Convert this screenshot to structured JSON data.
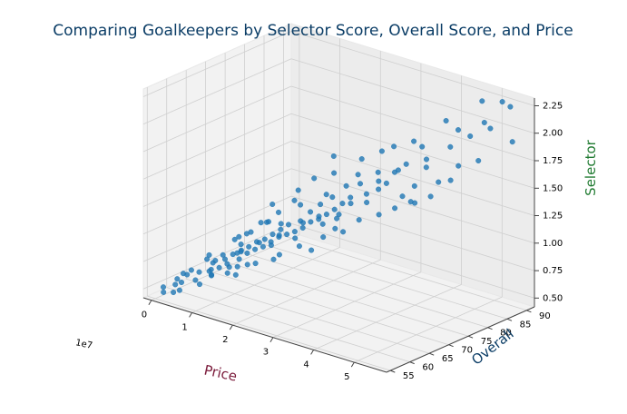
{
  "chart_data": {
    "type": "scatter",
    "projection": "3d",
    "title": "Comparing Goalkeepers by Selector Score, Overall Score, and Price",
    "xlabel": "Price",
    "ylabel": "Overall",
    "zlabel": "Selector",
    "x_offset_label": "1e7",
    "x_ticks": [
      "0",
      "1",
      "2",
      "3",
      "4",
      "5"
    ],
    "y_ticks": [
      "55",
      "60",
      "65",
      "70",
      "75",
      "80",
      "85",
      "90"
    ],
    "z_ticks": [
      "0.50",
      "0.75",
      "1.00",
      "1.25",
      "1.50",
      "1.75",
      "2.00",
      "2.25"
    ],
    "xlim": [
      -0.2,
      5.8
    ],
    "ylim": [
      54,
      92
    ],
    "zlim": [
      0.42,
      2.32
    ],
    "grid": true,
    "marker_color": "#1f77b4",
    "title_color": "#0b3d66",
    "xlabel_color": "#7a1a3a",
    "ylabel_color": "#0b3d66",
    "zlabel_color": "#1f7a30",
    "points": [
      [
        0.1,
        56,
        0.52
      ],
      [
        0.3,
        57,
        0.55
      ],
      [
        0.25,
        58,
        0.58
      ],
      [
        0.5,
        56.5,
        0.6
      ],
      [
        0.4,
        59,
        0.62
      ],
      [
        0.7,
        58,
        0.62
      ],
      [
        0.6,
        60,
        0.65
      ],
      [
        0.8,
        61,
        0.68
      ],
      [
        0.9,
        59.5,
        0.7
      ],
      [
        1.0,
        61,
        0.72
      ],
      [
        0.75,
        62,
        0.72
      ],
      [
        1.1,
        62,
        0.75
      ],
      [
        0.95,
        63,
        0.76
      ],
      [
        1.2,
        61.5,
        0.74
      ],
      [
        1.05,
        64,
        0.8
      ],
      [
        1.3,
        63,
        0.8
      ],
      [
        1.15,
        65,
        0.82
      ],
      [
        1.4,
        64,
        0.85
      ],
      [
        0.85,
        63.5,
        0.78
      ],
      [
        1.25,
        66,
        0.86
      ],
      [
        1.5,
        65,
        0.88
      ],
      [
        1.35,
        67,
        0.9
      ],
      [
        1.6,
        66,
        0.9
      ],
      [
        1.45,
        68,
        0.92
      ],
      [
        1.7,
        67,
        0.94
      ],
      [
        1.2,
        64.5,
        0.9
      ],
      [
        1.55,
        69,
        0.96
      ],
      [
        1.8,
        68,
        0.98
      ],
      [
        1.65,
        70,
        1.0
      ],
      [
        1.9,
        69,
        1.0
      ],
      [
        2.0,
        70,
        1.02
      ],
      [
        1.75,
        71,
        1.04
      ],
      [
        2.1,
        71,
        1.05
      ],
      [
        1.3,
        66,
        1.0
      ],
      [
        1.5,
        68,
        1.08
      ],
      [
        2.2,
        72,
        1.1
      ],
      [
        1.95,
        72,
        1.08
      ],
      [
        2.3,
        73,
        1.12
      ],
      [
        2.05,
        73.5,
        1.15
      ],
      [
        1.1,
        65,
        0.95
      ],
      [
        2.4,
        74,
        1.16
      ],
      [
        1.6,
        70,
        1.15
      ],
      [
        2.5,
        75,
        1.2
      ],
      [
        2.2,
        74.5,
        1.22
      ],
      [
        1.8,
        72,
        1.25
      ],
      [
        2.6,
        76,
        1.25
      ],
      [
        2.35,
        76,
        1.28
      ],
      [
        2.7,
        77,
        1.3
      ],
      [
        0.6,
        58,
        0.7
      ],
      [
        0.45,
        57.5,
        0.66
      ],
      [
        1.0,
        60,
        0.8
      ],
      [
        0.8,
        60.5,
        0.82
      ],
      [
        1.4,
        62.5,
        0.9
      ],
      [
        1.7,
        64,
        0.98
      ],
      [
        2.0,
        66,
        1.05
      ],
      [
        1.9,
        67.5,
        1.12
      ],
      [
        2.3,
        69,
        1.15
      ],
      [
        2.5,
        71,
        1.2
      ],
      [
        2.8,
        73,
        1.22
      ],
      [
        2.9,
        75,
        1.3
      ],
      [
        3.0,
        78,
        1.35
      ],
      [
        2.75,
        79,
        1.4
      ],
      [
        3.1,
        77,
        1.3
      ],
      [
        2.6,
        80,
        1.45
      ],
      [
        1.5,
        66.5,
        1.1
      ],
      [
        1.25,
        63,
        0.85
      ],
      [
        1.85,
        65.5,
        0.95
      ],
      [
        2.15,
        68.5,
        1.0
      ],
      [
        2.45,
        72.5,
        1.1
      ],
      [
        3.2,
        79,
        1.4
      ],
      [
        3.3,
        80,
        1.45
      ],
      [
        3.0,
        81,
        1.5
      ],
      [
        3.4,
        82,
        1.55
      ],
      [
        3.6,
        81,
        1.35
      ],
      [
        3.5,
        83,
        1.6
      ],
      [
        3.8,
        82,
        1.45
      ],
      [
        3.9,
        84,
        1.6
      ],
      [
        4.0,
        83,
        1.7
      ],
      [
        3.7,
        85,
        1.75
      ],
      [
        4.2,
        84,
        1.5
      ],
      [
        4.3,
        86,
        1.8
      ],
      [
        4.1,
        87,
        2.0
      ],
      [
        4.5,
        86,
        1.65
      ],
      [
        4.6,
        88,
        1.9
      ],
      [
        4.4,
        87,
        1.95
      ],
      [
        4.8,
        88,
        1.7
      ],
      [
        4.7,
        90,
        2.2
      ],
      [
        5.0,
        89,
        2.0
      ],
      [
        5.2,
        90,
        2.25
      ],
      [
        5.3,
        91,
        2.2
      ],
      [
        5.4,
        90.5,
        1.9
      ],
      [
        4.9,
        88.5,
        2.05
      ],
      [
        3.3,
        78,
        1.5
      ],
      [
        3.6,
        79,
        1.6
      ],
      [
        2.9,
        83,
        1.65
      ],
      [
        3.1,
        84,
        1.7
      ],
      [
        3.4,
        86,
        1.75
      ],
      [
        2.5,
        82,
        1.55
      ],
      [
        2.2,
        78,
        1.45
      ],
      [
        1.9,
        76,
        1.4
      ],
      [
        2.0,
        80,
        1.55
      ],
      [
        3.9,
        80,
        1.35
      ],
      [
        4.2,
        82,
        1.4
      ],
      [
        4.5,
        84,
        1.55
      ],
      [
        2.7,
        70,
        1.05
      ],
      [
        3.0,
        72,
        1.1
      ],
      [
        2.4,
        67,
        0.98
      ],
      [
        1.6,
        62,
        0.8
      ],
      [
        1.05,
        58.5,
        0.7
      ],
      [
        0.55,
        55.5,
        0.55
      ],
      [
        0.35,
        56,
        0.5
      ],
      [
        0.2,
        55,
        0.5
      ],
      [
        0.9,
        57,
        0.62
      ],
      [
        1.3,
        60,
        0.72
      ],
      [
        1.75,
        62.5,
        0.82
      ],
      [
        2.1,
        65,
        0.9
      ],
      [
        2.6,
        68,
        0.95
      ],
      [
        1.45,
        61,
        0.78
      ],
      [
        1.0,
        59,
        0.68
      ],
      [
        0.65,
        61.5,
        0.75
      ],
      [
        1.15,
        66.5,
        0.96
      ],
      [
        1.4,
        69.5,
        1.05
      ],
      [
        1.85,
        73,
        1.2
      ],
      [
        2.25,
        75.5,
        1.3
      ],
      [
        2.55,
        77.5,
        1.38
      ],
      [
        1.7,
        74,
        1.3
      ],
      [
        1.35,
        71,
        1.18
      ],
      [
        0.95,
        65.5,
        0.9
      ],
      [
        3.2,
        74,
        1.2
      ],
      [
        3.5,
        76,
        1.25
      ],
      [
        3.7,
        78,
        1.3
      ],
      [
        4.0,
        80,
        1.35
      ],
      [
        2.85,
        71.5,
        1.12
      ],
      [
        2.65,
        74,
        1.15
      ],
      [
        2.1,
        63.5,
        0.88
      ],
      [
        1.55,
        59.5,
        0.74
      ]
    ]
  }
}
